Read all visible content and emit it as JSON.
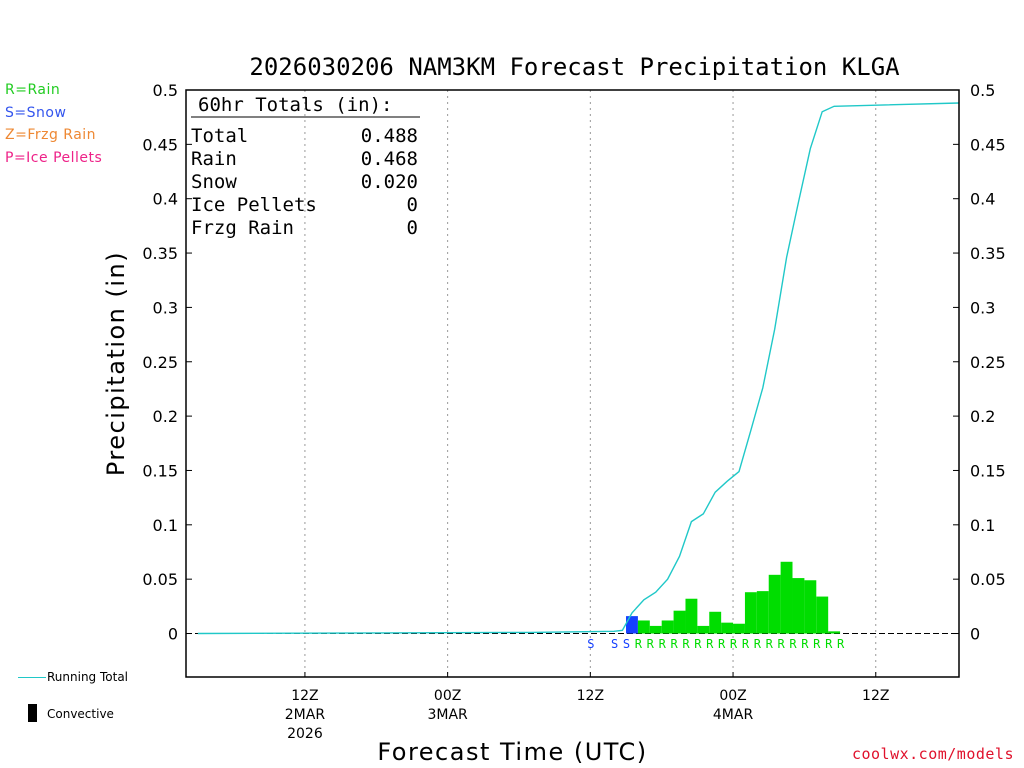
{
  "chart_data": {
    "type": "bar+line",
    "title": "2026030206 NAM3KM Forecast Precipitation KLGA",
    "xlabel": "Forecast Time (UTC)",
    "ylabel": "Precipitation (in)",
    "ylim": [
      -0.04,
      0.5
    ],
    "yticks": [
      0,
      0.05,
      0.1,
      0.15,
      0.2,
      0.25,
      0.3,
      0.35,
      0.4,
      0.45,
      0.5
    ],
    "ytick_labels": [
      "0",
      "0.05",
      "0.1",
      "0.15",
      "0.2",
      "0.25",
      "0.3",
      "0.35",
      "0.4",
      "0.45",
      "0.5"
    ],
    "xlim_hours": [
      -4,
      61
    ],
    "xticks": [
      {
        "hour": 6,
        "label": "12Z",
        "sub1": "2MAR",
        "sub2": "2026"
      },
      {
        "hour": 18,
        "label": "00Z",
        "sub1": "3MAR",
        "sub2": ""
      },
      {
        "hour": 30,
        "label": "12Z",
        "sub1": "",
        "sub2": ""
      },
      {
        "hour": 42,
        "label": "00Z",
        "sub1": "4MAR",
        "sub2": ""
      },
      {
        "hour": 54,
        "label": "12Z",
        "sub1": "",
        "sub2": ""
      }
    ],
    "totals_box": {
      "header": "60hr Totals (in):",
      "rows": [
        {
          "label": "Total",
          "value": "0.488"
        },
        {
          "label": "Rain",
          "value": "0.468"
        },
        {
          "label": "Snow",
          "value": "0.020"
        },
        {
          "label": "Ice Pellets",
          "value": "0"
        },
        {
          "label": "Frzg Rain",
          "value": "0"
        }
      ]
    },
    "ptype_legend": [
      {
        "text": "R=Rain",
        "color": "#22cc22"
      },
      {
        "text": "S=Snow",
        "color": "#3355ee"
      },
      {
        "text": "Z=Frzg Rain",
        "color": "#ee8833"
      },
      {
        "text": "P=Ice Pellets",
        "color": "#ee2288"
      }
    ],
    "bars": [
      {
        "hour": 33.5,
        "value": 0.016,
        "ptype": "S"
      },
      {
        "hour": 34.5,
        "value": 0.012,
        "ptype": "R"
      },
      {
        "hour": 35.5,
        "value": 0.007,
        "ptype": "R"
      },
      {
        "hour": 36.5,
        "value": 0.012,
        "ptype": "R"
      },
      {
        "hour": 37.5,
        "value": 0.021,
        "ptype": "R"
      },
      {
        "hour": 38.5,
        "value": 0.032,
        "ptype": "R"
      },
      {
        "hour": 39.5,
        "value": 0.007,
        "ptype": "R"
      },
      {
        "hour": 40.5,
        "value": 0.02,
        "ptype": "R"
      },
      {
        "hour": 41.5,
        "value": 0.01,
        "ptype": "R"
      },
      {
        "hour": 42.5,
        "value": 0.009,
        "ptype": "R"
      },
      {
        "hour": 43.5,
        "value": 0.038,
        "ptype": "R"
      },
      {
        "hour": 44.5,
        "value": 0.039,
        "ptype": "R"
      },
      {
        "hour": 45.5,
        "value": 0.054,
        "ptype": "R"
      },
      {
        "hour": 46.5,
        "value": 0.066,
        "ptype": "R"
      },
      {
        "hour": 47.5,
        "value": 0.051,
        "ptype": "R"
      },
      {
        "hour": 48.5,
        "value": 0.049,
        "ptype": "R"
      },
      {
        "hour": 49.5,
        "value": 0.034,
        "ptype": "R"
      },
      {
        "hour": 50.5,
        "value": 0.002,
        "ptype": "R"
      }
    ],
    "ptype_markers": [
      {
        "hour": 30.0,
        "type": "S"
      },
      {
        "hour": 32.0,
        "type": "S"
      },
      {
        "hour": 33.0,
        "type": "S"
      },
      {
        "hour": 34.0,
        "type": "R"
      },
      {
        "hour": 35.0,
        "type": "R"
      },
      {
        "hour": 36.0,
        "type": "R"
      },
      {
        "hour": 37.0,
        "type": "R"
      },
      {
        "hour": 38.0,
        "type": "R"
      },
      {
        "hour": 39.0,
        "type": "R"
      },
      {
        "hour": 40.0,
        "type": "R"
      },
      {
        "hour": 41.0,
        "type": "R"
      },
      {
        "hour": 42.0,
        "type": "R"
      },
      {
        "hour": 43.0,
        "type": "R"
      },
      {
        "hour": 44.0,
        "type": "R"
      },
      {
        "hour": 45.0,
        "type": "R"
      },
      {
        "hour": 46.0,
        "type": "R"
      },
      {
        "hour": 47.0,
        "type": "R"
      },
      {
        "hour": 48.0,
        "type": "R"
      },
      {
        "hour": 49.0,
        "type": "R"
      },
      {
        "hour": 50.0,
        "type": "R"
      },
      {
        "hour": 51.0,
        "type": "R"
      }
    ],
    "running_total": {
      "name": "Running Total",
      "x": [
        -3,
        25,
        32,
        32.7,
        33.5,
        34.5,
        35.5,
        36.5,
        37.5,
        38.5,
        39.5,
        40.5,
        41.5,
        42.5,
        43.5,
        44.5,
        45.5,
        46.5,
        47.5,
        48.5,
        49.5,
        50.5,
        61
      ],
      "y": [
        0,
        0.001,
        0.002,
        0.003,
        0.019,
        0.031,
        0.038,
        0.05,
        0.071,
        0.103,
        0.11,
        0.13,
        0.14,
        0.149,
        0.187,
        0.226,
        0.28,
        0.346,
        0.397,
        0.446,
        0.48,
        0.485,
        0.488
      ]
    },
    "colors": {
      "rain": "#00dd00",
      "snow": "#1540ff",
      "running_total": "#20c8c8",
      "grid": "#999999"
    },
    "footer_legend": [
      {
        "key": "running_total",
        "label": "Running Total"
      },
      {
        "key": "convective",
        "label": "Convective"
      }
    ],
    "credit": "coolwx.com/models"
  }
}
